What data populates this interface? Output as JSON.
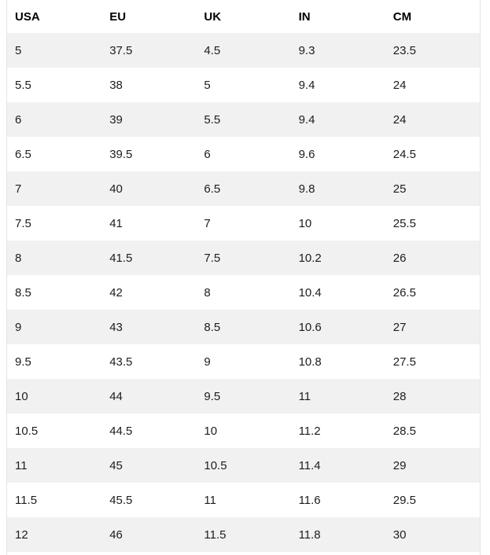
{
  "colors": {
    "stripe": "#f1f1f1",
    "border": "#e3e3e3",
    "header_text": "#000000",
    "cell_text": "#1d1d1d",
    "page_background": "#ffffff"
  },
  "table": {
    "columns": [
      "USA",
      "EU",
      "UK",
      "IN",
      "CM"
    ],
    "rows": [
      [
        "5",
        "37.5",
        "4.5",
        "9.3",
        "23.5"
      ],
      [
        "5.5",
        "38",
        "5",
        "9.4",
        "24"
      ],
      [
        "6",
        "39",
        "5.5",
        "9.4",
        "24"
      ],
      [
        "6.5",
        "39.5",
        "6",
        "9.6",
        "24.5"
      ],
      [
        "7",
        "40",
        "6.5",
        "9.8",
        "25"
      ],
      [
        "7.5",
        "41",
        "7",
        "10",
        "25.5"
      ],
      [
        "8",
        "41.5",
        "7.5",
        "10.2",
        "26"
      ],
      [
        "8.5",
        "42",
        "8",
        "10.4",
        "26.5"
      ],
      [
        "9",
        "43",
        "8.5",
        "10.6",
        "27"
      ],
      [
        "9.5",
        "43.5",
        "9",
        "10.8",
        "27.5"
      ],
      [
        "10",
        "44",
        "9.5",
        "11",
        "28"
      ],
      [
        "10.5",
        "44.5",
        "10",
        "11.2",
        "28.5"
      ],
      [
        "11",
        "45",
        "10.5",
        "11.4",
        "29"
      ],
      [
        "11.5",
        "45.5",
        "11",
        "11.6",
        "29.5"
      ],
      [
        "12",
        "46",
        "11.5",
        "11.8",
        "30"
      ]
    ]
  }
}
